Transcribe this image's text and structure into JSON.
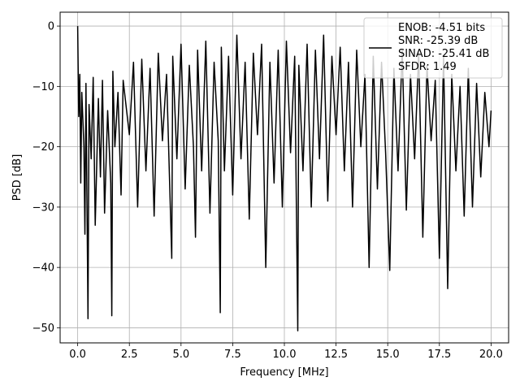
{
  "chart_data": {
    "type": "line",
    "title": "",
    "xlabel": "Frequency [MHz]",
    "ylabel": "PSD [dB]",
    "xlim": [
      -0.85,
      20.85
    ],
    "ylim": [
      -52.5,
      2.3
    ],
    "xticks": [
      0.0,
      2.5,
      5.0,
      7.5,
      10.0,
      12.5,
      15.0,
      17.5,
      20.0
    ],
    "xtick_labels": [
      "0.0",
      "2.5",
      "5.0",
      "7.5",
      "10.0",
      "12.5",
      "15.0",
      "17.5",
      "20.0"
    ],
    "yticks": [
      0,
      -10,
      -20,
      -30,
      -40,
      -50
    ],
    "ytick_labels": [
      "0",
      "−10",
      "−20",
      "−30",
      "−40",
      "−50"
    ],
    "grid": true,
    "legend_position": "top-right",
    "line_color": "#000000",
    "series": [
      {
        "legend_lines": [
          "ENOB: -4.51 bits",
          "SNR: -25.39 dB",
          "SINAD: -25.41 dB",
          "SFDR: 1.49"
        ],
        "x": [
          0.0,
          0.05,
          0.1,
          0.15,
          0.2,
          0.3,
          0.35,
          0.4,
          0.5,
          0.55,
          0.65,
          0.75,
          0.85,
          1.0,
          1.1,
          1.2,
          1.3,
          1.45,
          1.6,
          1.65,
          1.7,
          1.8,
          1.95,
          2.1,
          2.2,
          2.5,
          2.7,
          2.9,
          3.1,
          3.3,
          3.5,
          3.7,
          3.9,
          4.1,
          4.3,
          4.55,
          4.6,
          4.8,
          5.0,
          5.2,
          5.4,
          5.6,
          5.7,
          5.8,
          6.0,
          6.2,
          6.4,
          6.6,
          6.8,
          6.9,
          6.95,
          7.1,
          7.3,
          7.5,
          7.7,
          7.9,
          8.1,
          8.3,
          8.5,
          8.7,
          8.9,
          9.1,
          9.3,
          9.5,
          9.7,
          9.9,
          10.1,
          10.3,
          10.5,
          10.65,
          10.7,
          10.9,
          11.1,
          11.3,
          11.5,
          11.7,
          11.9,
          12.1,
          12.3,
          12.5,
          12.7,
          12.9,
          13.1,
          13.3,
          13.5,
          13.7,
          13.9,
          14.1,
          14.3,
          14.5,
          14.7,
          14.9,
          15.1,
          15.3,
          15.5,
          15.7,
          15.9,
          16.1,
          16.3,
          16.5,
          16.7,
          16.9,
          17.1,
          17.3,
          17.5,
          17.7,
          17.9,
          18.1,
          18.3,
          18.5,
          18.7,
          18.9,
          19.1,
          19.3,
          19.5,
          19.7,
          19.9,
          20.0
        ],
        "y": [
          0.0,
          -15.0,
          -8.0,
          -26.0,
          -11.0,
          -20.0,
          -34.5,
          -9.5,
          -48.5,
          -13.0,
          -22.0,
          -8.5,
          -33.0,
          -12.0,
          -25.0,
          -9.0,
          -31.0,
          -14.0,
          -26.0,
          -48.0,
          -7.5,
          -20.0,
          -11.0,
          -28.0,
          -9.0,
          -18.0,
          -6.0,
          -30.0,
          -5.5,
          -24.0,
          -7.0,
          -31.5,
          -4.5,
          -19.0,
          -8.0,
          -38.5,
          -5.0,
          -22.0,
          -3.0,
          -27.0,
          -6.5,
          -20.0,
          -35.0,
          -4.0,
          -24.0,
          -2.5,
          -31.0,
          -6.0,
          -19.0,
          -47.5,
          -3.5,
          -24.0,
          -5.0,
          -28.0,
          -1.5,
          -22.0,
          -6.0,
          -32.0,
          -4.5,
          -18.0,
          -3.0,
          -40.0,
          -6.0,
          -26.0,
          -4.0,
          -30.0,
          -2.5,
          -21.0,
          -5.0,
          -50.5,
          -6.5,
          -24.0,
          -3.0,
          -30.0,
          -4.0,
          -22.0,
          -1.5,
          -29.0,
          -5.0,
          -18.0,
          -3.5,
          -24.0,
          -6.0,
          -30.0,
          -4.0,
          -20.0,
          -8.0,
          -40.0,
          -5.0,
          -27.0,
          -6.0,
          -21.0,
          -40.5,
          -7.0,
          -24.0,
          -4.0,
          -30.5,
          -8.0,
          -22.0,
          -4.5,
          -35.0,
          -6.5,
          -19.0,
          -9.0,
          -38.5,
          -5.0,
          -43.5,
          -8.0,
          -24.0,
          -10.0,
          -31.5,
          -7.0,
          -30.0,
          -9.5,
          -25.0,
          -11.0,
          -20.0,
          -14.0
        ]
      }
    ]
  }
}
